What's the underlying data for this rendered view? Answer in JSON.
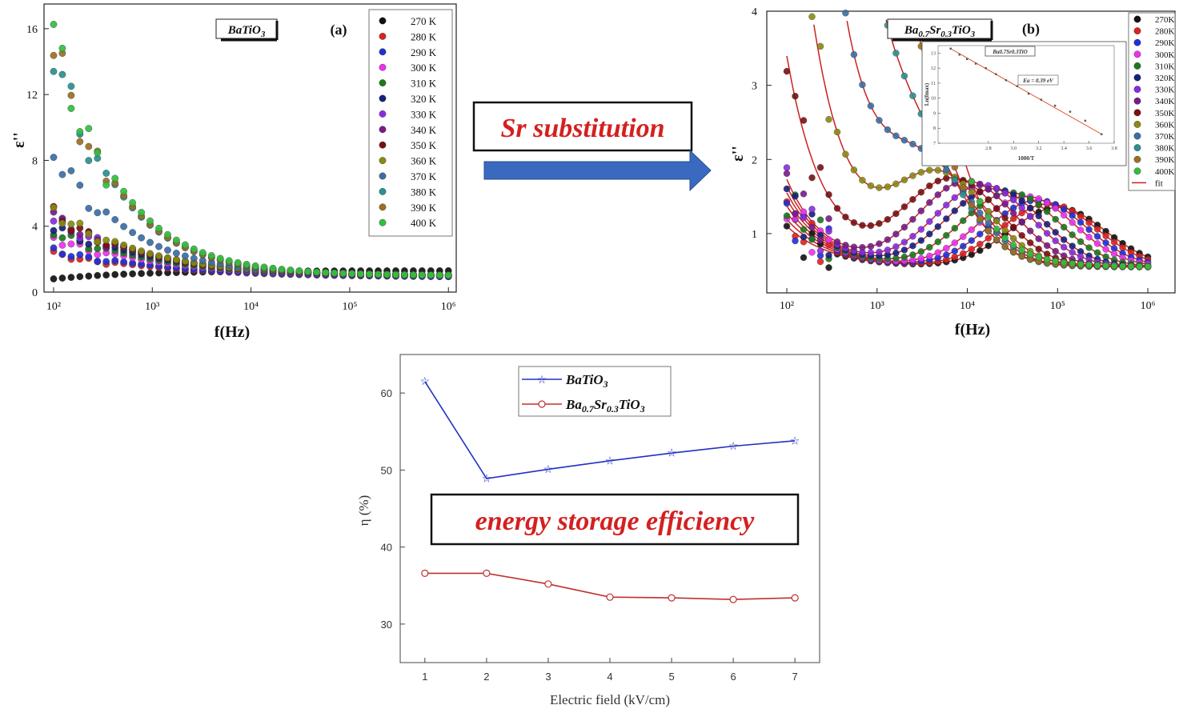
{
  "chart_data": [
    {
      "id": "a",
      "type": "scatter",
      "panel_label": "(a)",
      "tag": "BaTiO3",
      "xlabel": "f(Hz)",
      "ylabel": "ε''",
      "xscale": "log",
      "xlim": [
        80,
        1200000
      ],
      "ylim": [
        0,
        17.5
      ],
      "yticks": [
        "0",
        "4",
        "8",
        "12",
        "16"
      ],
      "xticks": [
        "10²",
        "10³",
        "10⁴",
        "10⁵",
        "10⁶"
      ],
      "legend_position": "top-right",
      "series": [
        {
          "name": "270 K",
          "color": "#111111",
          "low": 0.9,
          "amp": 0.4,
          "alpha": 0.2,
          "shape": "rise"
        },
        {
          "name": "280 K",
          "color": "#e02020",
          "low": 0.9,
          "amp": 1.6,
          "alpha": 0.25
        },
        {
          "name": "290 K",
          "color": "#2030d8",
          "low": 0.9,
          "amp": 1.8,
          "alpha": 0.25
        },
        {
          "name": "300 K",
          "color": "#ee30ee",
          "low": 0.95,
          "amp": 2.6,
          "alpha": 0.28
        },
        {
          "name": "310 K",
          "color": "#1a7a1a",
          "low": 1.0,
          "amp": 3.0,
          "alpha": 0.3
        },
        {
          "name": "320 K",
          "color": "#152080",
          "low": 1.0,
          "amp": 3.4,
          "alpha": 0.3
        },
        {
          "name": "330 K",
          "color": "#8a2be2",
          "low": 1.0,
          "amp": 3.8,
          "alpha": 0.3
        },
        {
          "name": "340 K",
          "color": "#7a1a8a",
          "low": 1.0,
          "amp": 4.0,
          "alpha": 0.32
        },
        {
          "name": "350 K",
          "color": "#7a1010",
          "low": 1.0,
          "amp": 4.2,
          "alpha": 0.33
        },
        {
          "name": "360 K",
          "color": "#8a8a10",
          "low": 1.0,
          "amp": 4.4,
          "alpha": 0.33
        },
        {
          "name": "370 K",
          "color": "#3a6ea5",
          "low": 1.0,
          "amp": 8.5,
          "alpha": 0.4
        },
        {
          "name": "380 K",
          "color": "#2a9090",
          "low": 1.0,
          "amp": 15.5,
          "alpha": 0.45
        },
        {
          "name": "390 K",
          "color": "#9a7020",
          "low": 1.0,
          "amp": 15.8,
          "alpha": 0.45
        },
        {
          "name": "400 K",
          "color": "#30c040",
          "low": 1.0,
          "amp": 16.2,
          "alpha": 0.44
        }
      ]
    },
    {
      "id": "b",
      "type": "scatter",
      "panel_label": "(b)",
      "tag": "Ba0.7Sr0.3TiO3",
      "xlabel": "f(Hz)",
      "ylabel": "ε''",
      "xscale": "log",
      "xlim": [
        60,
        2000000
      ],
      "ylim": [
        0.2,
        4
      ],
      "yticks": [
        "1",
        "2",
        "3",
        "4"
      ],
      "xticks": [
        "10²",
        "10³",
        "10⁴",
        "10⁵",
        "10⁶"
      ],
      "legend_position": "top-right",
      "fit_label": "fit",
      "series": [
        {
          "name": "270K",
          "color": "#111111",
          "peak_f": 100000,
          "peak": 1.35
        },
        {
          "name": "280K",
          "color": "#e02020",
          "peak_f": 80000,
          "peak": 1.4
        },
        {
          "name": "290K",
          "color": "#2030d8",
          "peak_f": 60000,
          "peak": 1.45
        },
        {
          "name": "300K",
          "color": "#ee30ee",
          "peak_f": 45000,
          "peak": 1.5
        },
        {
          "name": "310K",
          "color": "#1a7a1a",
          "peak_f": 30000,
          "peak": 1.55
        },
        {
          "name": "320K",
          "color": "#152080",
          "peak_f": 20000,
          "peak": 1.6
        },
        {
          "name": "330K",
          "color": "#8a2be2",
          "peak_f": 15000,
          "peak": 1.65
        },
        {
          "name": "340K",
          "color": "#7a1a8a",
          "peak_f": 10000,
          "peak": 1.7
        },
        {
          "name": "350K",
          "color": "#7a1010",
          "peak_f": 7000,
          "peak": 1.72
        },
        {
          "name": "360K",
          "color": "#8a8a10",
          "peak_f": 5000,
          "peak": 1.75
        },
        {
          "name": "370K",
          "color": "#3a6ea5",
          "peak_f": 3500,
          "peak": 1.78
        },
        {
          "name": "380K",
          "color": "#2a9090",
          "peak_f": 2500,
          "peak": 1.8
        },
        {
          "name": "390K",
          "color": "#9a7020",
          "peak_f": 1800,
          "peak": 1.8
        },
        {
          "name": "400K",
          "color": "#30c040",
          "peak_f": 1200,
          "peak": 1.8
        }
      ],
      "inset": {
        "tag": "Ba0.7Sr0.3TiO",
        "annotation": "Ea = 0.39 eV",
        "xlabel": "1000/T",
        "ylabel": "Ln(fmax)",
        "xticks": [
          "2.8",
          "3.0",
          "3.2",
          "3.4",
          "3.6",
          "3.8"
        ],
        "yticks": [
          "7",
          "8",
          "9",
          "10",
          "11",
          "12",
          "13"
        ],
        "x": [
          2.5,
          2.57,
          2.63,
          2.7,
          2.78,
          2.86,
          2.94,
          3.03,
          3.12,
          3.22,
          3.33,
          3.45,
          3.57,
          3.7
        ],
        "y": [
          13.3,
          12.9,
          12.6,
          12.3,
          12.0,
          11.6,
          11.2,
          10.8,
          10.3,
          9.9,
          9.5,
          9.1,
          8.5,
          7.6
        ]
      }
    },
    {
      "id": "c",
      "type": "line",
      "xlabel": "Electric field (kV/cm)",
      "ylabel": "η (%)",
      "xlim": [
        0.6,
        7.4
      ],
      "ylim": [
        25,
        65
      ],
      "xticks": [
        "1",
        "2",
        "3",
        "4",
        "5",
        "6",
        "7"
      ],
      "yticks": [
        "30",
        "40",
        "50",
        "60"
      ],
      "legend_position": "top-center",
      "x": [
        1,
        2,
        3,
        4,
        5,
        6,
        7
      ],
      "series": [
        {
          "name": "BaTiO3",
          "color": "#2030c0",
          "marker": "star",
          "values": [
            61.5,
            48.9,
            50.1,
            51.2,
            52.2,
            53.1,
            53.8
          ]
        },
        {
          "name": "Ba0.7Sr0.3TiO3",
          "color": "#c03030",
          "marker": "circle",
          "values": [
            36.6,
            36.6,
            35.2,
            33.5,
            33.4,
            33.2,
            33.4
          ]
        }
      ]
    }
  ],
  "callouts": {
    "sr_substitution": "Sr substitution",
    "energy_storage": "energy storage efficiency"
  },
  "colors": {
    "arrow": "#3a6ac0",
    "callout_text": "#d42020",
    "fit_line": "#cc2020"
  }
}
